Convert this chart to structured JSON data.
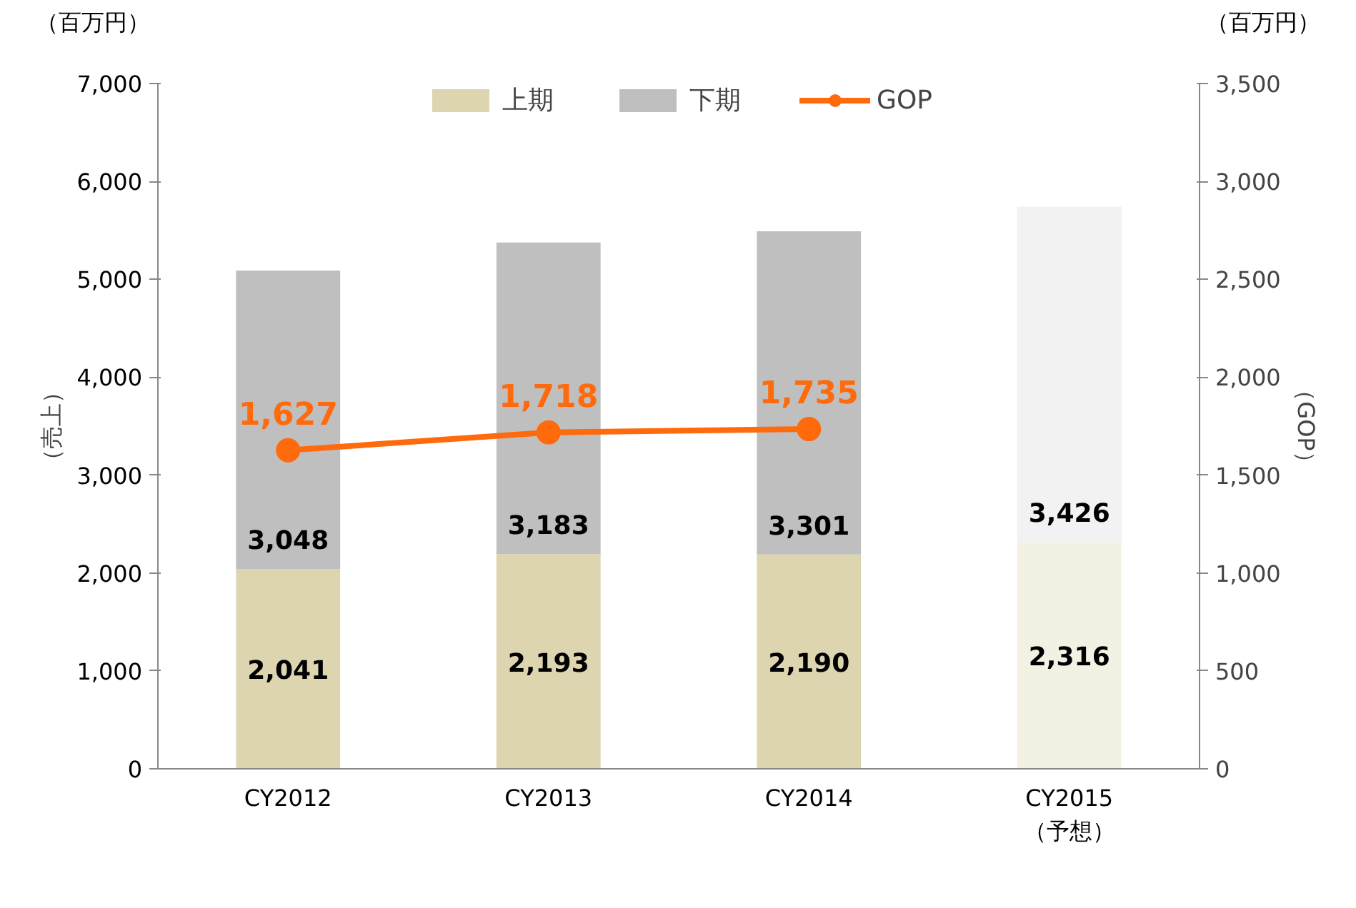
{
  "chart_data": {
    "type": "bar",
    "stacked": true,
    "categories": [
      "CY2012",
      "CY2013",
      "CY2014",
      "CY2015\n（予想）"
    ],
    "series": [
      {
        "name": "上期",
        "colors": [
          "#ddd4b0",
          "#ddd4b0",
          "#ddd4b0",
          "#f3f1e3"
        ],
        "values": [
          2041,
          2193,
          2190,
          2316
        ],
        "value_labels": [
          "2,041",
          "2,193",
          "2,190",
          "2,316"
        ]
      },
      {
        "name": "下期",
        "colors": [
          "#bfbfbf",
          "#bfbfbf",
          "#bfbfbf",
          "#f2f2f2"
        ],
        "values": [
          3048,
          3183,
          3301,
          3426
        ],
        "value_labels": [
          "3,048",
          "3,183",
          "3,301",
          "3,426"
        ]
      },
      {
        "name": "GOP",
        "type": "line",
        "axis": "y2",
        "color": "#ff6a0d",
        "marker": "circle",
        "values": [
          1627,
          1718,
          1735,
          null
        ],
        "value_labels": [
          "1,627",
          "1,718",
          "1,735",
          null
        ]
      }
    ],
    "ylabel": "（売上）",
    "y2label": "（GOP）",
    "annotations": [
      "（百万円）",
      "（百万円）"
    ],
    "ylim": [
      0,
      7000
    ],
    "yticks": [
      {
        "value": 0,
        "label": "0"
      },
      {
        "value": 1000,
        "label": "1,000"
      },
      {
        "value": 2000,
        "label": "2,000"
      },
      {
        "value": 3000,
        "label": "3,000"
      },
      {
        "value": 4000,
        "label": "4,000"
      },
      {
        "value": 5000,
        "label": "5,000"
      },
      {
        "value": 6000,
        "label": "6,000"
      },
      {
        "value": 7000,
        "label": "7,000"
      }
    ],
    "y2lim": [
      0,
      3500
    ],
    "y2ticks": [
      {
        "value": 0,
        "label": "0"
      },
      {
        "value": 500,
        "label": "500"
      },
      {
        "value": 1000,
        "label": "1,000"
      },
      {
        "value": 1500,
        "label": "1,500"
      },
      {
        "value": 2000,
        "label": "2,000"
      },
      {
        "value": 2500,
        "label": "2,500"
      },
      {
        "value": 3000,
        "label": "3,000"
      },
      {
        "value": 3500,
        "label": "3,500"
      }
    ],
    "grid": false,
    "legend": "top"
  }
}
